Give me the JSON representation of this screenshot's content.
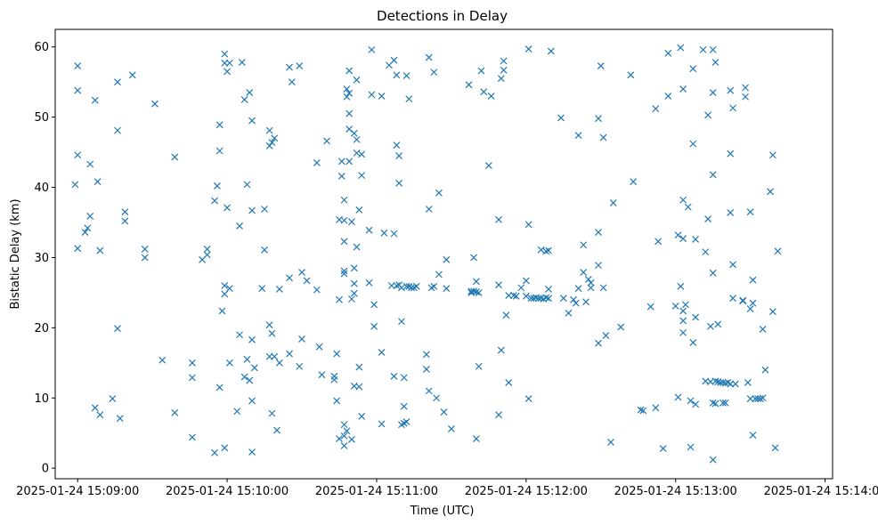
{
  "chart_data": {
    "type": "scatter",
    "title": "Detections in Delay",
    "xlabel": "Time (UTC)",
    "ylabel": "Bistatic Delay (km)",
    "xlim": [
      "2025-01-24 15:08:51",
      "2025-01-24 15:14:03"
    ],
    "ylim": [
      -1.5,
      62.5
    ],
    "grid": false,
    "marker": "x",
    "color": "#1f77b4",
    "x_ticks": [
      "2025-01-24 15:09:00",
      "2025-01-24 15:10:00",
      "2025-01-24 15:11:00",
      "2025-01-24 15:12:00",
      "2025-01-24 15:13:00",
      "2025-01-24 15:14:00"
    ],
    "y_ticks": [
      "0",
      "10",
      "20",
      "30",
      "40",
      "50",
      "60"
    ],
    "points": [
      [
        "15:09:00",
        57.3
      ],
      [
        "15:09:00",
        53.8
      ],
      [
        "15:09:00",
        44.6
      ],
      [
        "15:08:59",
        40.4
      ],
      [
        "15:09:00",
        31.3
      ],
      [
        "15:09:03",
        33.6
      ],
      [
        "15:09:04",
        34.2
      ],
      [
        "15:09:05",
        35.9
      ],
      [
        "15:09:05",
        43.3
      ],
      [
        "15:09:07",
        52.4
      ],
      [
        "15:09:08",
        40.8
      ],
      [
        "15:09:09",
        31.0
      ],
      [
        "15:09:07",
        8.6
      ],
      [
        "15:09:09",
        7.6
      ],
      [
        "15:09:14",
        9.9
      ],
      [
        "15:09:16",
        48.1
      ],
      [
        "15:09:16",
        55.0
      ],
      [
        "15:09:22",
        56.0
      ],
      [
        "15:09:19",
        36.5
      ],
      [
        "15:09:19",
        35.2
      ],
      [
        "15:09:16",
        19.9
      ],
      [
        "15:09:17",
        7.1
      ],
      [
        "15:09:27",
        31.2
      ],
      [
        "15:09:27",
        30.0
      ],
      [
        "15:09:31",
        51.9
      ],
      [
        "15:09:34",
        15.4
      ],
      [
        "15:09:39",
        44.3
      ],
      [
        "15:09:39",
        7.9
      ],
      [
        "15:09:46",
        15.0
      ],
      [
        "15:09:46",
        12.9
      ],
      [
        "15:09:46",
        4.4
      ],
      [
        "15:09:50",
        29.7
      ],
      [
        "15:09:52",
        30.4
      ],
      [
        "15:09:52",
        31.2
      ],
      [
        "15:09:55",
        2.2
      ],
      [
        "15:09:55",
        38.1
      ],
      [
        "15:09:56",
        40.2
      ],
      [
        "15:09:57",
        45.2
      ],
      [
        "15:09:57",
        48.9
      ],
      [
        "15:09:57",
        11.5
      ],
      [
        "15:09:58",
        22.4
      ],
      [
        "15:09:59",
        59.0
      ],
      [
        "15:09:59",
        57.7
      ],
      [
        "15:10:00",
        56.5
      ],
      [
        "15:10:01",
        57.7
      ],
      [
        "15:09:59",
        26.0
      ],
      [
        "15:09:59",
        24.8
      ],
      [
        "15:10:01",
        25.6
      ],
      [
        "15:09:59",
        2.9
      ],
      [
        "15:10:00",
        37.1
      ],
      [
        "15:10:01",
        15.0
      ],
      [
        "15:10:04",
        8.1
      ],
      [
        "15:10:05",
        19.0
      ],
      [
        "15:10:05",
        34.5
      ],
      [
        "15:10:06",
        57.8
      ],
      [
        "15:10:07",
        52.5
      ],
      [
        "15:10:07",
        13.0
      ],
      [
        "15:10:08",
        40.4
      ],
      [
        "15:10:08",
        15.5
      ],
      [
        "15:10:09",
        53.5
      ],
      [
        "15:10:09",
        12.5
      ],
      [
        "15:10:10",
        18.3
      ],
      [
        "15:10:10",
        9.6
      ],
      [
        "15:10:10",
        49.5
      ],
      [
        "15:10:10",
        36.7
      ],
      [
        "15:10:11",
        14.3
      ],
      [
        "15:10:10",
        2.3
      ],
      [
        "15:10:15",
        36.9
      ],
      [
        "15:10:14",
        25.6
      ],
      [
        "15:10:15",
        31.1
      ],
      [
        "15:10:17",
        48.1
      ],
      [
        "15:10:17",
        45.9
      ],
      [
        "15:10:18",
        46.4
      ],
      [
        "15:10:19",
        47.0
      ],
      [
        "15:10:17",
        20.4
      ],
      [
        "15:10:18",
        19.2
      ],
      [
        "15:10:17",
        15.9
      ],
      [
        "15:10:19",
        15.9
      ],
      [
        "15:10:18",
        7.8
      ],
      [
        "15:10:20",
        5.4
      ],
      [
        "15:10:21",
        15.0
      ],
      [
        "15:10:21",
        25.5
      ],
      [
        "15:10:25",
        16.3
      ],
      [
        "15:10:25",
        27.1
      ],
      [
        "15:10:25",
        57.1
      ],
      [
        "15:10:26",
        55.0
      ],
      [
        "15:10:29",
        57.3
      ],
      [
        "15:10:29",
        14.5
      ],
      [
        "15:10:30",
        18.4
      ],
      [
        "15:10:30",
        27.9
      ],
      [
        "15:10:32",
        26.7
      ],
      [
        "15:10:36",
        25.4
      ],
      [
        "15:10:36",
        43.5
      ],
      [
        "15:10:37",
        17.3
      ],
      [
        "15:10:38",
        13.3
      ],
      [
        "15:10:40",
        46.6
      ],
      [
        "15:10:43",
        13.1
      ],
      [
        "15:10:43",
        12.6
      ],
      [
        "15:10:44",
        16.3
      ],
      [
        "15:10:44",
        9.6
      ],
      [
        "15:10:45",
        4.2
      ],
      [
        "15:10:45",
        24.0
      ],
      [
        "15:10:45",
        35.4
      ],
      [
        "15:10:46",
        41.6
      ],
      [
        "15:10:46",
        43.7
      ],
      [
        "15:10:47",
        38.2
      ],
      [
        "15:10:47",
        35.3
      ],
      [
        "15:10:47",
        32.3
      ],
      [
        "15:10:47",
        28.1
      ],
      [
        "15:10:47",
        27.7
      ],
      [
        "15:10:47",
        6.2
      ],
      [
        "15:10:47",
        4.6
      ],
      [
        "15:10:47",
        3.2
      ],
      [
        "15:10:48",
        5.3
      ],
      [
        "15:10:48",
        52.9
      ],
      [
        "15:10:48",
        54.0
      ],
      [
        "15:10:49",
        53.4
      ],
      [
        "15:10:49",
        56.6
      ],
      [
        "15:10:49",
        50.5
      ],
      [
        "15:10:49",
        48.3
      ],
      [
        "15:10:49",
        43.7
      ],
      [
        "15:10:50",
        35.1
      ],
      [
        "15:10:50",
        24.1
      ],
      [
        "15:10:51",
        24.9
      ],
      [
        "15:10:51",
        28.5
      ],
      [
        "15:10:51",
        26.3
      ],
      [
        "15:10:52",
        31.5
      ],
      [
        "15:10:51",
        11.7
      ],
      [
        "15:10:50",
        4.1
      ],
      [
        "15:10:51",
        47.7
      ],
      [
        "15:10:52",
        44.9
      ],
      [
        "15:10:52",
        55.3
      ],
      [
        "15:10:52",
        46.8
      ],
      [
        "15:10:53",
        36.8
      ],
      [
        "15:10:53",
        14.4
      ],
      [
        "15:10:53",
        11.6
      ],
      [
        "15:10:54",
        41.7
      ],
      [
        "15:10:54",
        44.7
      ],
      [
        "15:10:54",
        7.4
      ],
      [
        "15:10:57",
        33.9
      ],
      [
        "15:10:57",
        26.4
      ],
      [
        "15:10:58",
        59.6
      ],
      [
        "15:10:58",
        53.2
      ],
      [
        "15:10:59",
        23.3
      ],
      [
        "15:10:59",
        20.2
      ],
      [
        "15:11:02",
        53.0
      ],
      [
        "15:11:02",
        6.3
      ],
      [
        "15:11:02",
        16.5
      ],
      [
        "15:11:03",
        33.5
      ],
      [
        "15:11:05",
        57.4
      ],
      [
        "15:11:06",
        26.0
      ],
      [
        "15:11:07",
        58.1
      ],
      [
        "15:11:08",
        56.0
      ],
      [
        "15:11:07",
        33.4
      ],
      [
        "15:11:07",
        13.1
      ],
      [
        "15:11:08",
        26.0
      ],
      [
        "15:11:08",
        46.0
      ],
      [
        "15:11:09",
        44.5
      ],
      [
        "15:11:09",
        40.6
      ],
      [
        "15:11:09",
        26.1
      ],
      [
        "15:11:10",
        25.7
      ],
      [
        "15:11:10",
        20.9
      ],
      [
        "15:11:10",
        6.2
      ],
      [
        "15:11:11",
        6.4
      ],
      [
        "15:11:11",
        8.8
      ],
      [
        "15:11:11",
        12.9
      ],
      [
        "15:11:12",
        25.9
      ],
      [
        "15:11:12",
        55.9
      ],
      [
        "15:11:12",
        6.6
      ],
      [
        "15:11:13",
        52.6
      ],
      [
        "15:11:13",
        25.9
      ],
      [
        "15:11:14",
        25.7
      ],
      [
        "15:11:15",
        25.7
      ],
      [
        "15:11:16",
        25.9
      ],
      [
        "15:11:21",
        58.5
      ],
      [
        "15:11:21",
        36.9
      ],
      [
        "15:11:20",
        16.2
      ],
      [
        "15:11:20",
        14.1
      ],
      [
        "15:11:21",
        11.0
      ],
      [
        "15:11:22",
        25.7
      ],
      [
        "15:11:23",
        25.9
      ],
      [
        "15:11:23",
        56.4
      ],
      [
        "15:11:24",
        10.0
      ],
      [
        "15:11:25",
        39.2
      ],
      [
        "15:11:25",
        27.6
      ],
      [
        "15:11:27",
        8.0
      ],
      [
        "15:11:28",
        29.7
      ],
      [
        "15:11:28",
        25.6
      ],
      [
        "15:11:30",
        5.6
      ],
      [
        "15:11:37",
        54.6
      ],
      [
        "15:11:38",
        25.2
      ],
      [
        "15:11:38",
        25.0
      ],
      [
        "15:11:39",
        25.2
      ],
      [
        "15:11:39",
        30.0
      ],
      [
        "15:11:40",
        26.6
      ],
      [
        "15:11:40",
        25.1
      ],
      [
        "15:11:41",
        25.0
      ],
      [
        "15:11:40",
        4.2
      ],
      [
        "15:11:41",
        14.5
      ],
      [
        "15:11:42",
        56.6
      ],
      [
        "15:11:43",
        53.6
      ],
      [
        "15:11:45",
        43.1
      ],
      [
        "15:11:46",
        53.0
      ],
      [
        "15:11:49",
        35.4
      ],
      [
        "15:11:49",
        26.1
      ],
      [
        "15:11:49",
        7.6
      ],
      [
        "15:11:50",
        16.8
      ],
      [
        "15:11:50",
        55.5
      ],
      [
        "15:11:51",
        56.7
      ],
      [
        "15:11:51",
        58.0
      ],
      [
        "15:11:52",
        21.8
      ],
      [
        "15:11:53",
        12.2
      ],
      [
        "15:11:53",
        24.6
      ],
      [
        "15:11:55",
        24.6
      ],
      [
        "15:11:56",
        24.5
      ],
      [
        "15:11:58",
        25.7
      ],
      [
        "15:12:00",
        24.5
      ],
      [
        "15:12:00",
        26.7
      ],
      [
        "15:12:02",
        24.2
      ],
      [
        "15:12:03",
        24.2
      ],
      [
        "15:12:04",
        24.3
      ],
      [
        "15:12:05",
        24.2
      ],
      [
        "15:12:06",
        24.2
      ],
      [
        "15:12:07",
        24.1
      ],
      [
        "15:12:08",
        24.3
      ],
      [
        "15:12:09",
        24.2
      ],
      [
        "15:12:01",
        59.7
      ],
      [
        "15:12:01",
        34.7
      ],
      [
        "15:12:01",
        9.9
      ],
      [
        "15:12:06",
        31.1
      ],
      [
        "15:12:08",
        30.9
      ],
      [
        "15:12:09",
        31.0
      ],
      [
        "15:12:09",
        25.5
      ],
      [
        "15:12:10",
        59.4
      ],
      [
        "15:12:14",
        49.9
      ],
      [
        "15:12:15",
        24.2
      ],
      [
        "15:12:17",
        22.1
      ],
      [
        "15:12:19",
        24.0
      ],
      [
        "15:12:20",
        23.5
      ],
      [
        "15:12:21",
        25.6
      ],
      [
        "15:12:21",
        47.4
      ],
      [
        "15:12:23",
        31.8
      ],
      [
        "15:12:23",
        27.9
      ],
      [
        "15:12:25",
        26.9
      ],
      [
        "15:12:24",
        23.7
      ],
      [
        "15:12:26",
        25.7
      ],
      [
        "15:12:26",
        26.4
      ],
      [
        "15:12:29",
        49.8
      ],
      [
        "15:12:29",
        33.6
      ],
      [
        "15:12:29",
        28.9
      ],
      [
        "15:12:29",
        17.8
      ],
      [
        "15:12:30",
        57.3
      ],
      [
        "15:12:31",
        47.1
      ],
      [
        "15:12:31",
        25.7
      ],
      [
        "15:12:32",
        18.9
      ],
      [
        "15:12:34",
        3.7
      ],
      [
        "15:12:35",
        37.8
      ],
      [
        "15:12:38",
        20.1
      ],
      [
        "15:12:42",
        56.0
      ],
      [
        "15:12:43",
        40.8
      ],
      [
        "15:12:46",
        8.3
      ],
      [
        "15:12:47",
        8.2
      ],
      [
        "15:12:50",
        23.0
      ],
      [
        "15:12:52",
        8.6
      ],
      [
        "15:12:52",
        51.2
      ],
      [
        "15:12:53",
        32.3
      ],
      [
        "15:12:55",
        2.8
      ],
      [
        "15:12:57",
        59.1
      ],
      [
        "15:12:57",
        53.0
      ],
      [
        "15:13:00",
        23.1
      ],
      [
        "15:13:01",
        10.1
      ],
      [
        "15:13:01",
        33.2
      ],
      [
        "15:13:02",
        25.9
      ],
      [
        "15:13:02",
        59.9
      ],
      [
        "15:13:03",
        54.0
      ],
      [
        "15:13:03",
        38.2
      ],
      [
        "15:13:03",
        32.7
      ],
      [
        "15:13:03",
        22.4
      ],
      [
        "15:13:03",
        21.0
      ],
      [
        "15:13:03",
        19.3
      ],
      [
        "15:13:04",
        23.3
      ],
      [
        "15:13:05",
        37.2
      ],
      [
        "15:13:06",
        9.6
      ],
      [
        "15:13:06",
        3.0
      ],
      [
        "15:13:07",
        56.9
      ],
      [
        "15:13:07",
        46.2
      ],
      [
        "15:13:07",
        17.9
      ],
      [
        "15:13:08",
        32.6
      ],
      [
        "15:13:08",
        21.5
      ],
      [
        "15:13:08",
        9.1
      ],
      [
        "15:13:11",
        59.6
      ],
      [
        "15:13:12",
        30.8
      ],
      [
        "15:13:12",
        12.4
      ],
      [
        "15:13:13",
        35.5
      ],
      [
        "15:13:13",
        50.3
      ],
      [
        "15:13:14",
        20.2
      ],
      [
        "15:13:14",
        12.3
      ],
      [
        "15:13:15",
        59.6
      ],
      [
        "15:13:15",
        53.5
      ],
      [
        "15:13:15",
        41.8
      ],
      [
        "15:13:15",
        27.8
      ],
      [
        "15:13:15",
        9.3
      ],
      [
        "15:13:16",
        57.8
      ],
      [
        "15:13:16",
        12.4
      ],
      [
        "15:13:16",
        9.2
      ],
      [
        "15:13:17",
        20.5
      ],
      [
        "15:13:17",
        12.3
      ],
      [
        "15:13:18",
        12.2
      ],
      [
        "15:13:19",
        12.2
      ],
      [
        "15:13:19",
        9.3
      ],
      [
        "15:13:20",
        9.3
      ],
      [
        "15:13:20",
        12.1
      ],
      [
        "15:13:21",
        12.2
      ],
      [
        "15:13:22",
        12.0
      ],
      [
        "15:13:22",
        53.8
      ],
      [
        "15:13:22",
        36.4
      ],
      [
        "15:13:22",
        44.8
      ],
      [
        "15:13:23",
        51.3
      ],
      [
        "15:13:23",
        29.0
      ],
      [
        "15:13:23",
        24.2
      ],
      [
        "15:13:24",
        12.0
      ],
      [
        "15:13:15",
        1.2
      ],
      [
        "15:13:27",
        23.9
      ],
      [
        "15:13:27",
        23.8
      ],
      [
        "15:13:28",
        52.9
      ],
      [
        "15:13:28",
        54.2
      ],
      [
        "15:13:29",
        12.2
      ],
      [
        "15:13:30",
        36.5
      ],
      [
        "15:13:30",
        22.7
      ],
      [
        "15:13:31",
        23.5
      ],
      [
        "15:13:31",
        26.8
      ],
      [
        "15:13:30",
        9.9
      ],
      [
        "15:13:31",
        4.7
      ],
      [
        "15:13:32",
        9.9
      ],
      [
        "15:13:33",
        9.9
      ],
      [
        "15:13:34",
        9.9
      ],
      [
        "15:13:35",
        10.0
      ],
      [
        "15:13:35",
        19.8
      ],
      [
        "15:13:36",
        14.0
      ],
      [
        "15:13:38",
        39.4
      ],
      [
        "15:13:39",
        44.6
      ],
      [
        "15:13:39",
        22.3
      ],
      [
        "15:13:40",
        2.9
      ],
      [
        "15:13:41",
        30.9
      ]
    ]
  }
}
